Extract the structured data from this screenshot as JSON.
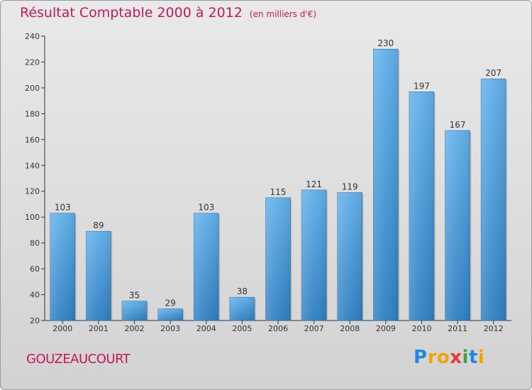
{
  "header": {
    "title": "Résultat Comptable 2000 à 2012",
    "subtitle": "(en milliers d'€)"
  },
  "footer": {
    "location": "GOUZEAUCOURT",
    "brand": "Proxiti",
    "brand_letters": [
      "P",
      "r",
      "o",
      "x",
      "i",
      "t",
      "i"
    ],
    "brand_colors": [
      "#1e88e5",
      "#f4a300",
      "#f4a300",
      "#e53935",
      "#43a047",
      "#1e88e5",
      "#f4a300"
    ]
  },
  "chart_data": {
    "type": "bar",
    "title": "Résultat Comptable 2000 à 2012",
    "subtitle": "(en milliers d'€)",
    "xlabel": "",
    "ylabel": "",
    "categories": [
      "2000",
      "2001",
      "2002",
      "2003",
      "2004",
      "2005",
      "2006",
      "2007",
      "2008",
      "2009",
      "2010",
      "2011",
      "2012"
    ],
    "values": [
      103,
      89,
      35,
      29,
      103,
      38,
      115,
      121,
      119,
      230,
      197,
      167,
      207
    ],
    "ylim": [
      20,
      240
    ],
    "yticks": [
      20,
      40,
      60,
      80,
      100,
      120,
      140,
      160,
      180,
      200,
      220,
      240
    ],
    "grid": false,
    "bar_color_top": "#62b0ea",
    "bar_color_bottom": "#2f7fc1"
  }
}
